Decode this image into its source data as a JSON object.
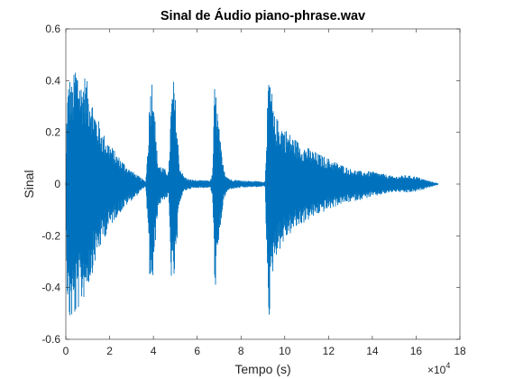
{
  "chart_data": {
    "type": "line",
    "title": "Sinal de Áudio piano-phrase.wav",
    "xlabel": "Tempo (s)",
    "ylabel": "Sinal",
    "xlim": [
      0,
      180000
    ],
    "ylim": [
      -0.6,
      0.6
    ],
    "x_tick_labels": [
      "0",
      "2",
      "4",
      "6",
      "8",
      "10",
      "12",
      "14",
      "16",
      "18"
    ],
    "x_tick_values": [
      0,
      20000,
      40000,
      60000,
      80000,
      100000,
      120000,
      140000,
      160000,
      180000
    ],
    "x_exponent_base": "×10",
    "x_exponent_power": "4",
    "y_tick_labels": [
      "-0.6",
      "-0.4",
      "-0.2",
      "0",
      "0.2",
      "0.4",
      "0.6"
    ],
    "y_tick_values": [
      -0.6,
      -0.4,
      -0.2,
      0,
      0.2,
      0.4,
      0.6
    ],
    "grid": false,
    "legend": false,
    "series": [
      {
        "color": "#0072BD",
        "envelope_x": [
          0,
          500,
          1500,
          3000,
          4500,
          5500,
          7000,
          8500,
          10000,
          11500,
          12500,
          14000,
          17000,
          20000,
          23000,
          26000,
          29000,
          32000,
          35000,
          36500,
          37500,
          38500,
          40000,
          41000,
          42000,
          43500,
          45000,
          47000,
          48000,
          49000,
          50000,
          51000,
          52000,
          54000,
          56000,
          60000,
          64000,
          66000,
          67000,
          68000,
          69000,
          70000,
          71500,
          73000,
          75000,
          80000,
          85000,
          88000,
          90000,
          91000,
          92000,
          93000,
          94000,
          95000,
          96000,
          98000,
          100000,
          103000,
          107000,
          111000,
          115000,
          120000,
          125000,
          130000,
          135000,
          140000,
          145000,
          150000,
          155000,
          160000,
          165000,
          168000,
          170000
        ],
        "envelope_max": [
          0.01,
          0.33,
          0.43,
          0.38,
          0.48,
          0.46,
          0.4,
          0.43,
          0.39,
          0.36,
          0.31,
          0.27,
          0.2,
          0.16,
          0.12,
          0.09,
          0.06,
          0.04,
          0.02,
          0.01,
          0.16,
          0.39,
          0.44,
          0.2,
          0.09,
          0.07,
          0.06,
          0.05,
          0.3,
          0.42,
          0.34,
          0.2,
          0.07,
          0.03,
          0.02,
          0.015,
          0.015,
          0.015,
          0.04,
          0.4,
          0.32,
          0.22,
          0.09,
          0.04,
          0.02,
          0.015,
          0.012,
          0.012,
          0.01,
          0.01,
          0.3,
          0.43,
          0.37,
          0.27,
          0.26,
          0.24,
          0.22,
          0.19,
          0.16,
          0.14,
          0.12,
          0.1,
          0.08,
          0.06,
          0.05,
          0.05,
          0.04,
          0.03,
          0.035,
          0.03,
          0.015,
          0.008,
          0.003
        ],
        "envelope_min": [
          -0.01,
          -0.42,
          -0.55,
          -0.53,
          -0.52,
          -0.49,
          -0.47,
          -0.44,
          -0.4,
          -0.37,
          -0.33,
          -0.29,
          -0.22,
          -0.17,
          -0.13,
          -0.1,
          -0.07,
          -0.05,
          -0.02,
          -0.01,
          -0.2,
          -0.4,
          -0.39,
          -0.22,
          -0.1,
          -0.07,
          -0.06,
          -0.05,
          -0.36,
          -0.39,
          -0.36,
          -0.21,
          -0.07,
          -0.03,
          -0.02,
          -0.015,
          -0.015,
          -0.015,
          -0.05,
          -0.41,
          -0.37,
          -0.24,
          -0.1,
          -0.04,
          -0.02,
          -0.015,
          -0.012,
          -0.012,
          -0.01,
          -0.01,
          -0.35,
          -0.55,
          -0.4,
          -0.3,
          -0.28,
          -0.25,
          -0.22,
          -0.19,
          -0.16,
          -0.14,
          -0.12,
          -0.1,
          -0.08,
          -0.07,
          -0.06,
          -0.05,
          -0.04,
          -0.03,
          -0.035,
          -0.03,
          -0.015,
          -0.008,
          -0.003
        ]
      }
    ]
  }
}
